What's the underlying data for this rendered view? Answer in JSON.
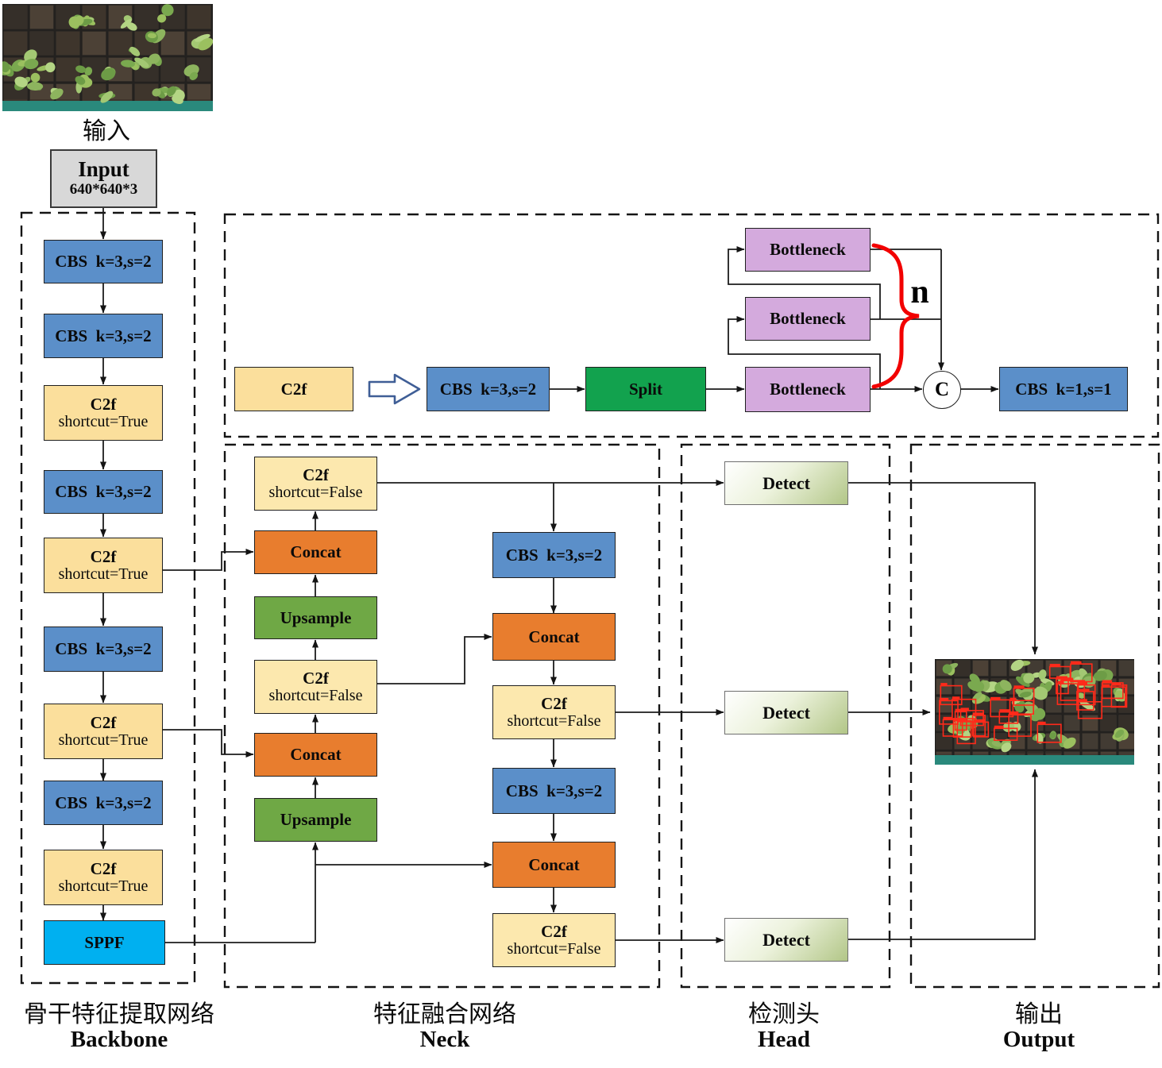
{
  "input_section": {
    "photo_caption": "输入",
    "input_label": "Input",
    "input_size": "640*640*3"
  },
  "backbone": {
    "caption_zh": "骨干特征提取网络",
    "caption_en": "Backbone",
    "blocks": [
      {
        "line1": "CBS  k=3,s=2"
      },
      {
        "line1": "CBS  k=3,s=2"
      },
      {
        "line1": "C2f",
        "line2": "shortcut=True"
      },
      {
        "line1": "CBS  k=3,s=2"
      },
      {
        "line1": "C2f",
        "line2": "shortcut=True"
      },
      {
        "line1": "CBS  k=3,s=2"
      },
      {
        "line1": "C2f",
        "line2": "shortcut=True"
      },
      {
        "line1": "CBS  k=3,s=2"
      },
      {
        "line1": "C2f",
        "line2": "shortcut=True"
      },
      {
        "line1": "SPPF"
      }
    ]
  },
  "c2f_detail": {
    "c2f_label": "C2f",
    "cbs_in_label": "CBS  k=3,s=2",
    "split_label": "Split",
    "bottlenecks": [
      "Bottleneck",
      "Bottleneck",
      "Bottleneck"
    ],
    "repeat_label": "n",
    "concat_symbol": "C",
    "cbs_out_label": "CBS  k=1,s=1"
  },
  "neck": {
    "caption_zh": "特征融合网络",
    "caption_en": "Neck",
    "left": [
      {
        "line1": "C2f",
        "line2": "shortcut=False"
      },
      {
        "line1": "Concat"
      },
      {
        "line1": "Upsample"
      },
      {
        "line1": "C2f",
        "line2": "shortcut=False"
      },
      {
        "line1": "Concat"
      },
      {
        "line1": "Upsample"
      }
    ],
    "right": [
      {
        "line1": "CBS  k=3,s=2"
      },
      {
        "line1": "Concat"
      },
      {
        "line1": "C2f",
        "line2": "shortcut=False"
      },
      {
        "line1": "CBS  k=3,s=2"
      },
      {
        "line1": "Concat"
      },
      {
        "line1": "C2f",
        "line2": "shortcut=False"
      }
    ]
  },
  "head": {
    "caption_zh": "检测头",
    "caption_en": "Head",
    "detects": [
      "Detect",
      "Detect",
      "Detect"
    ]
  },
  "output_section": {
    "caption_zh": "输出",
    "caption_en": "Output"
  },
  "colors": {
    "cbs_blue": "#5b8fc9",
    "c2f_yellow": "#fbdf9c",
    "concat_orange": "#e87d2e",
    "upsample_green": "#6fa845",
    "split_green": "#12a24e",
    "sppf_cyan": "#00b0f0",
    "bottleneck_purple": "#d4aadd",
    "detect_green": "#b2c687",
    "input_gray": "#d8d8d8",
    "brace_red": "#f20000"
  }
}
